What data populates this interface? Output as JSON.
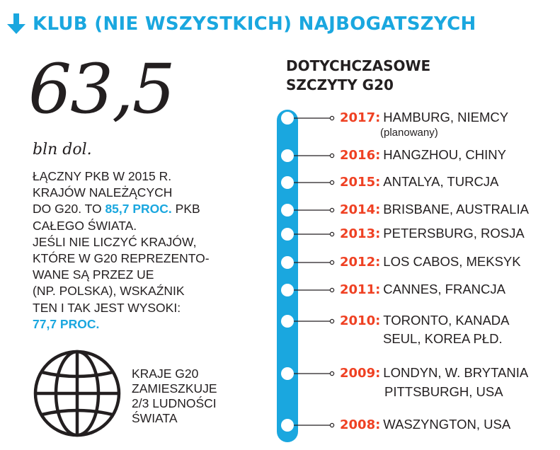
{
  "header": {
    "title": "KLUB (NIE WSZYSTKICH) NAJBOGATSZYCH",
    "arrow_icon": "arrow-down-icon",
    "accent_color": "#1aa7df"
  },
  "stat": {
    "value": "63,5",
    "unit": "bln dol.",
    "desc": {
      "l1": "ŁĄCZNY PKB W 2015 R.",
      "l2": "KRAJÓW NALEŻĄCYCH",
      "l3a": "DO G20. TO ",
      "l3b": "85,7 PROC.",
      "l3c": " PKB",
      "l4": "CAŁEGO ŚWIATA.",
      "l5": "JEŚLI NIE LICZYĆ KRAJÓW,",
      "l6": "KTÓRE W G20 REPREZENTO-",
      "l7": "WANE SĄ PRZEZ UE",
      "l8": "(NP. POLSKA), WSKAŹNIK",
      "l9": "TEN I TAK JEST WYSOKI:",
      "l10": "77,7 PROC."
    }
  },
  "population": {
    "icon": "globe-icon",
    "l1": "KRAJE G20",
    "l2": "ZAMIESZKUJE",
    "l3": "2/3 LUDNOŚCI",
    "l4": "ŚWIATA"
  },
  "timeline": {
    "title_l1": "DOTYCHCZASOWE",
    "title_l2": "SZCZYTY G20",
    "year_color": "#ef4123",
    "entries": [
      {
        "year": "2017:",
        "place": "HAMBURG, NIEMCY",
        "note": "(planowany)"
      },
      {
        "year": "2016:",
        "place": "HANGZHOU, CHINY"
      },
      {
        "year": "2015:",
        "place": "ANTALYA, TURCJA"
      },
      {
        "year": "2014:",
        "place": "BRISBANE, AUSTRALIA"
      },
      {
        "year": "2013:",
        "place": "PETERSBURG, ROSJA"
      },
      {
        "year": "2012:",
        "place": "LOS CABOS, MEKSYK"
      },
      {
        "year": "2011:",
        "place": "CANNES, FRANCJA"
      },
      {
        "year": "2010:",
        "place": "TORONTO, KANADA",
        "place2": "SEUL, KOREA PŁD."
      },
      {
        "year": "2009:",
        "place": "LONDYN, W. BRYTANIA",
        "place2": "PITTSBURGH, USA"
      },
      {
        "year": "2008:",
        "place": "WASZYNGTON, USA"
      }
    ]
  }
}
